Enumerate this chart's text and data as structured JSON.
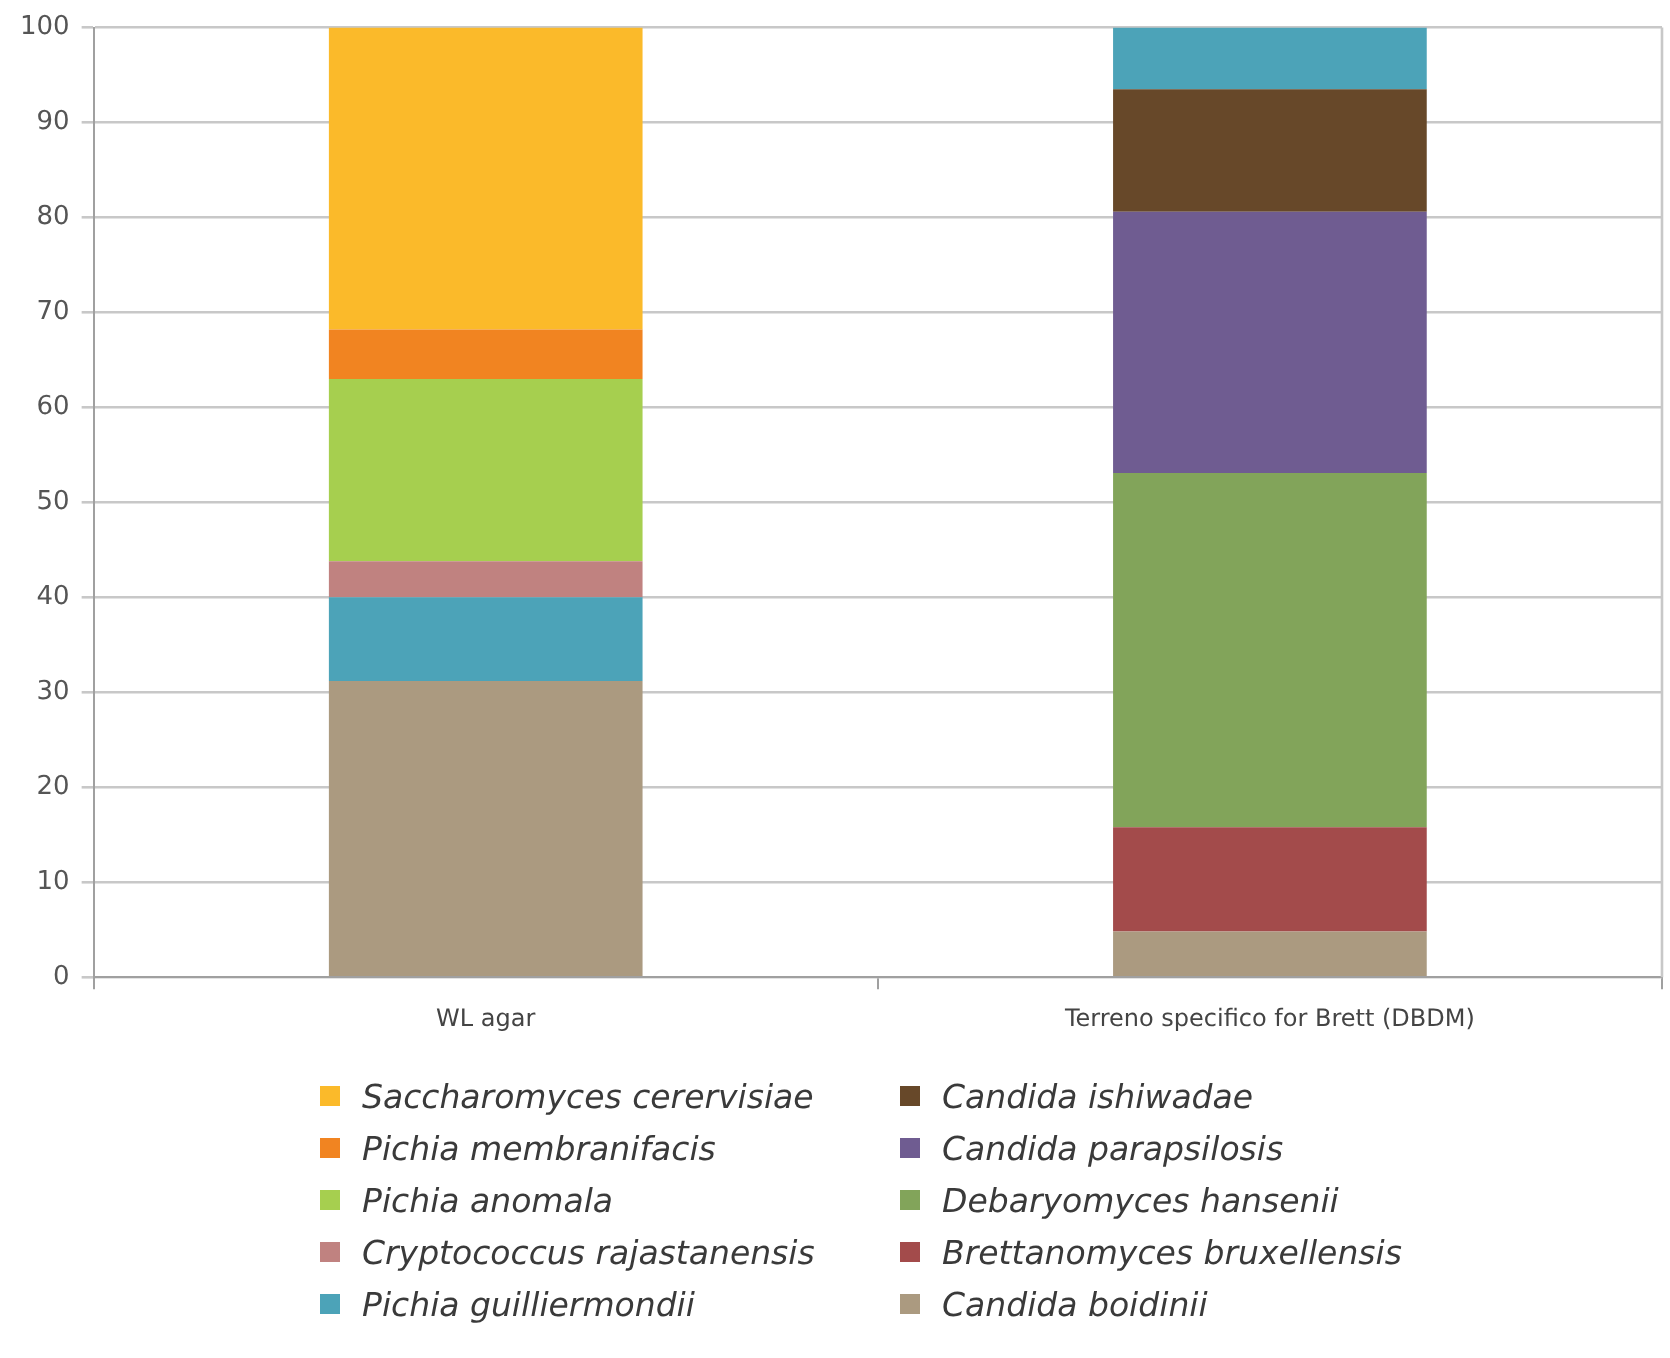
{
  "chart_data": {
    "type": "bar",
    "stacked": true,
    "categories": [
      "WL agar",
      "Terreno specifico for Brett (DBDM)"
    ],
    "series": [
      {
        "name": "Candida boidinii",
        "color": "#ab9a80",
        "values": [
          31.2,
          4.8
        ]
      },
      {
        "name": "Brettanomyces bruxellensis",
        "color": "#a34b4b",
        "values": [
          0,
          11.0
        ]
      },
      {
        "name": "Debaryomyces hansenii",
        "color": "#82a45a",
        "values": [
          0,
          37.3
        ]
      },
      {
        "name": "Candida parapsilosis",
        "color": "#6f5c91",
        "values": [
          0,
          27.5
        ]
      },
      {
        "name": "Candida ishiwadae",
        "color": "#674829",
        "values": [
          0,
          12.9
        ]
      },
      {
        "name": "Pichia guilliermondii",
        "color": "#4ca3b8",
        "values": [
          8.8,
          6.5
        ]
      },
      {
        "name": "Cryptococcus rajastanensis",
        "color": "#c08280",
        "values": [
          3.8,
          0
        ]
      },
      {
        "name": "Pichia anomala",
        "color": "#a6cf4f",
        "values": [
          19.2,
          0
        ]
      },
      {
        "name": "Pichia membranifacis",
        "color": "#f18421",
        "values": [
          5.2,
          0
        ]
      },
      {
        "name": "Saccharomyces cerervisiae",
        "color": "#fbba2a",
        "values": [
          31.8,
          0
        ]
      }
    ],
    "ylim": [
      0,
      100
    ],
    "yticks": [
      0,
      10,
      20,
      30,
      40,
      50,
      60,
      70,
      80,
      90,
      100
    ],
    "grid": "y",
    "legend": "bottom"
  }
}
